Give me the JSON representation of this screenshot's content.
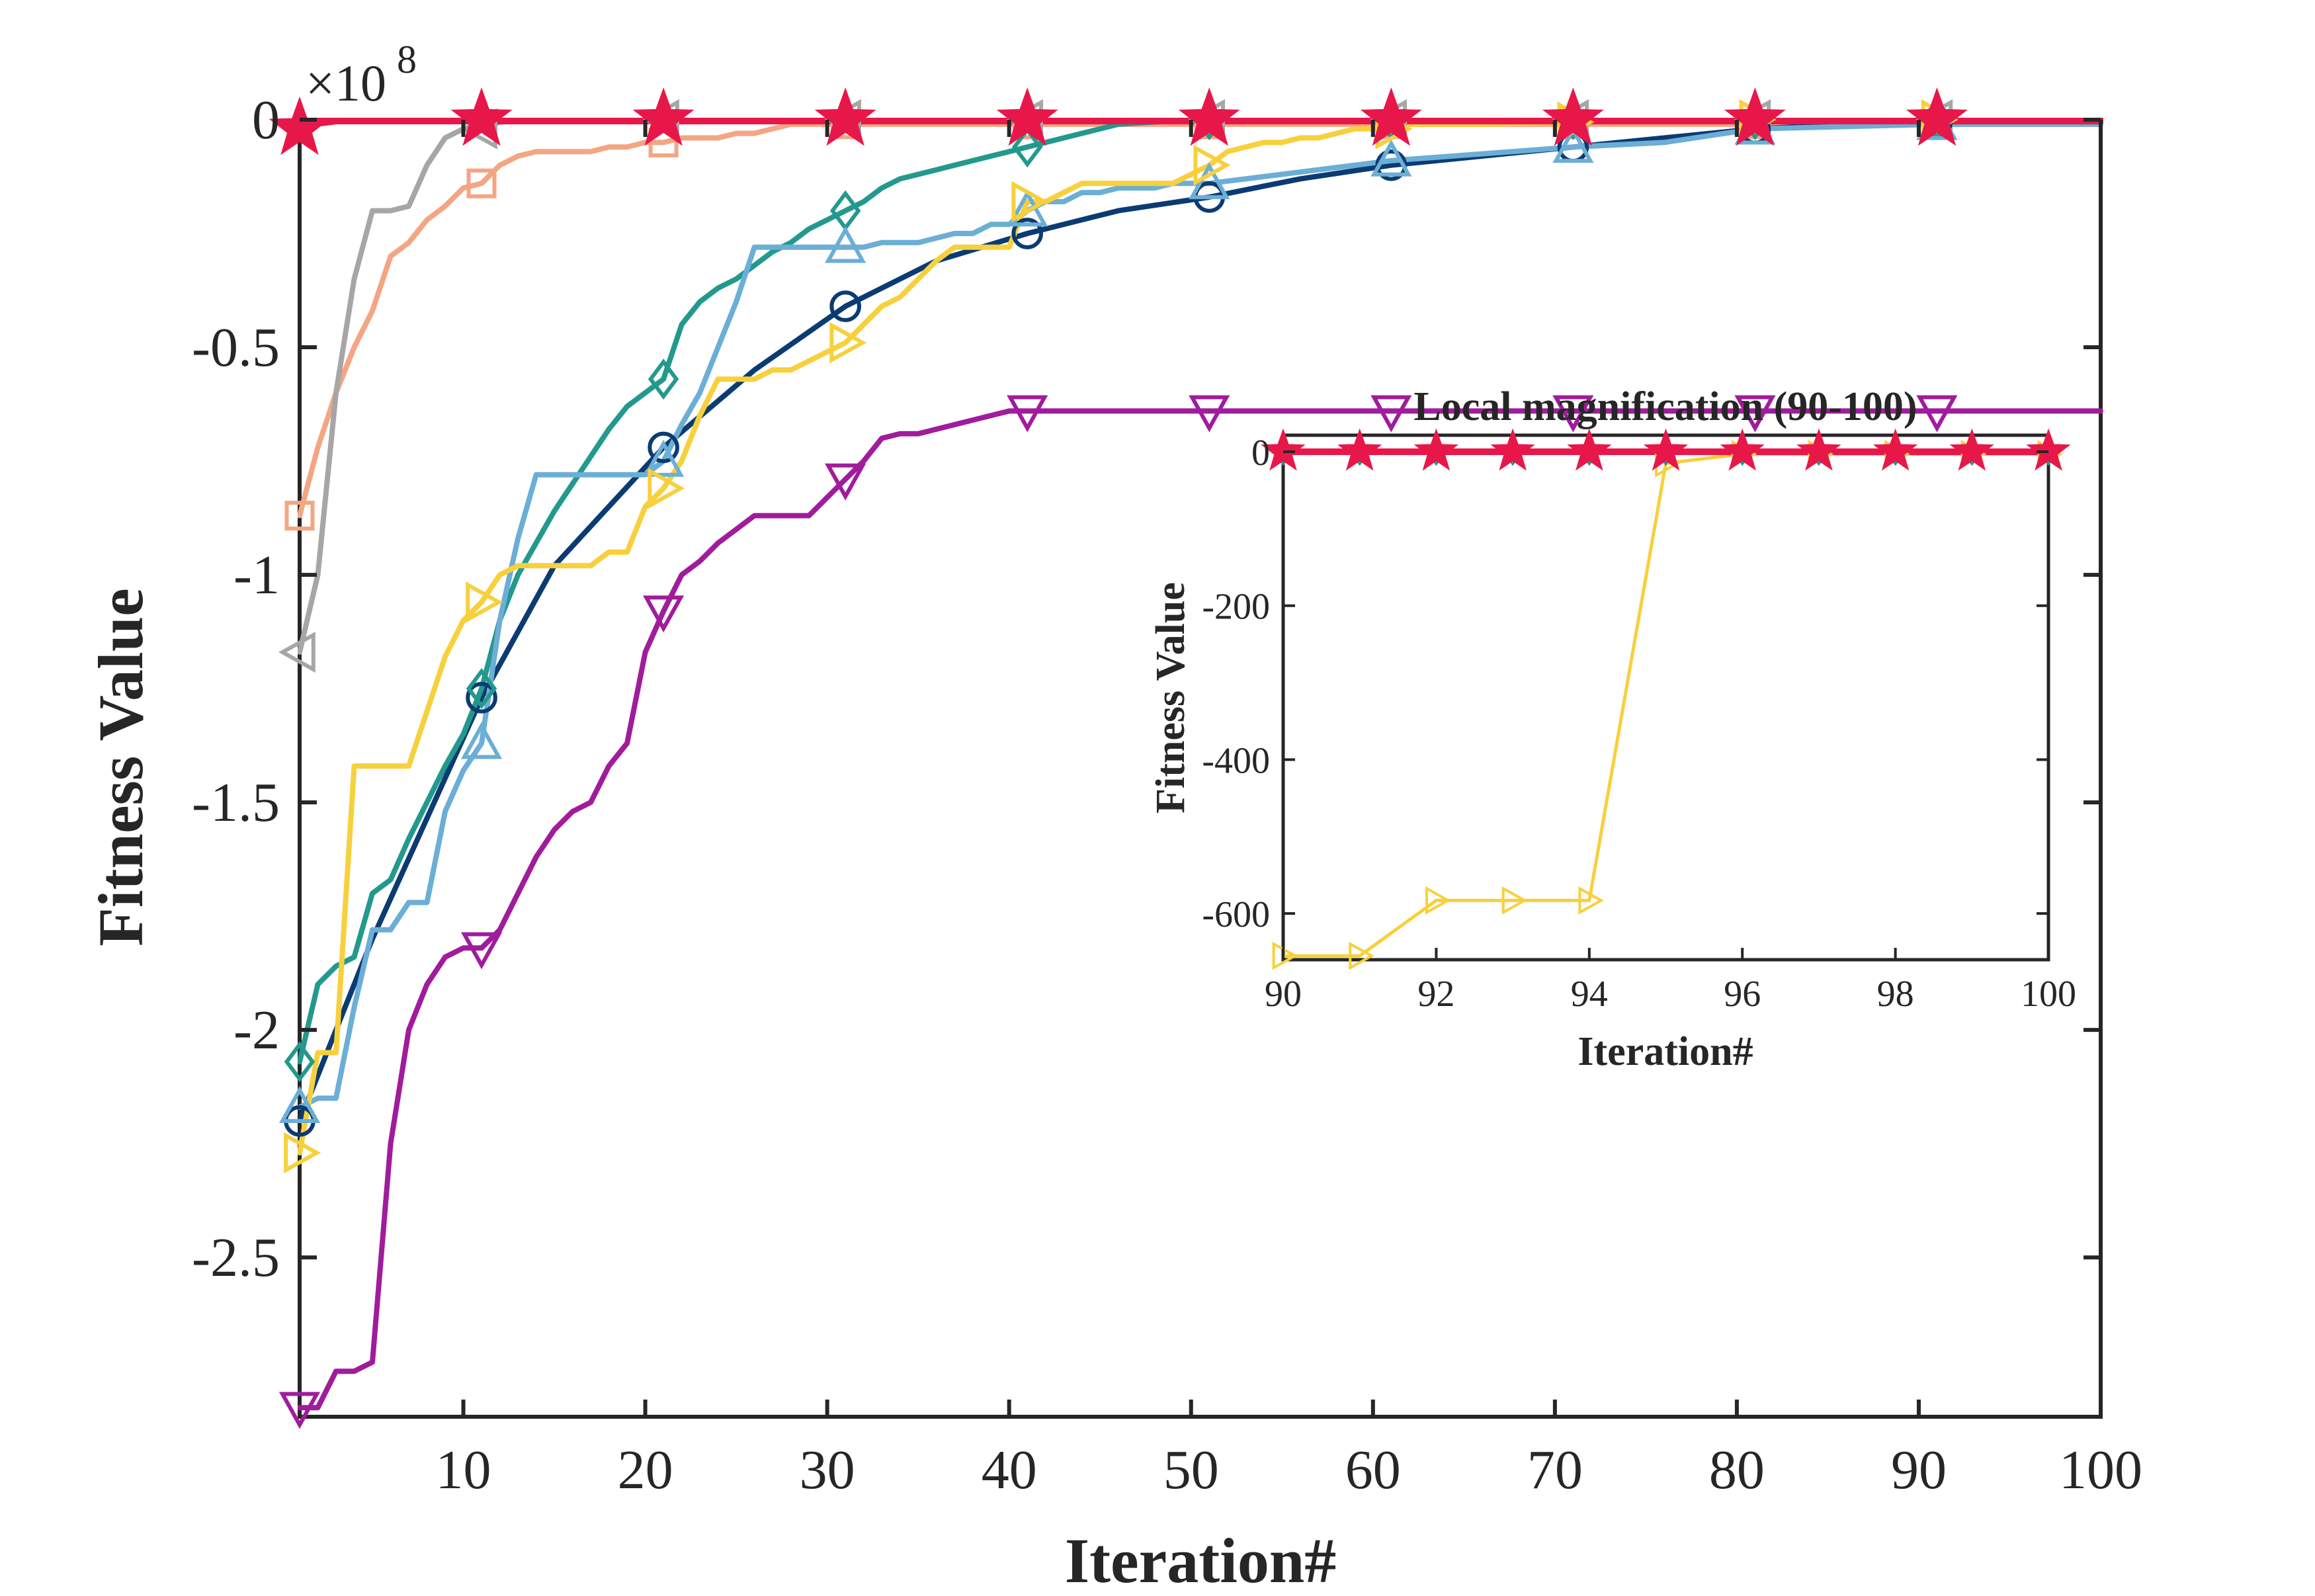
{
  "chart_data": [
    {
      "type": "line",
      "xlabel": "Iteration#",
      "ylabel": "Fitness Value",
      "y_exponent_label": "×10",
      "y_exponent_power": "8",
      "y_scale_factor": 100000000,
      "xlim": [
        1,
        100
      ],
      "ylim": [
        -2.85,
        0.0
      ],
      "xticks": [
        10,
        20,
        30,
        40,
        50,
        60,
        70,
        80,
        90,
        100
      ],
      "xtick_labels": [
        "10",
        "20",
        "30",
        "40",
        "50",
        "60",
        "70",
        "80",
        "90",
        "100"
      ],
      "yticks": [
        0,
        -0.5,
        -1,
        -1.5,
        -2,
        -2.5
      ],
      "ytick_labels": [
        "0",
        "-0.5",
        "-1",
        "-1.5",
        "-2",
        "-2.5"
      ],
      "grid": false,
      "series": [
        {
          "color": "#F4A582",
          "marker": "square",
          "x": [
            1,
            2,
            3,
            4,
            5,
            6,
            7,
            8,
            9,
            10,
            11,
            12,
            13,
            14,
            15,
            16,
            17,
            18,
            19,
            20,
            21,
            22,
            23,
            24,
            25,
            26,
            27,
            28,
            29,
            30,
            31,
            40,
            100
          ],
          "y": [
            -0.87,
            -0.72,
            -0.6,
            -0.5,
            -0.42,
            -0.3,
            -0.27,
            -0.22,
            -0.19,
            -0.15,
            -0.14,
            -0.1,
            -0.08,
            -0.07,
            -0.07,
            -0.07,
            -0.07,
            -0.06,
            -0.06,
            -0.05,
            -0.05,
            -0.04,
            -0.04,
            -0.04,
            -0.03,
            -0.03,
            -0.02,
            -0.01,
            -0.01,
            -0.01,
            -0.01,
            -0.01,
            -0.01
          ]
        },
        {
          "color": "#A6A6A6",
          "marker": "triangle-left",
          "x": [
            1,
            2,
            3,
            4,
            5,
            6,
            7,
            8,
            9,
            10,
            11,
            12,
            20,
            100
          ],
          "y": [
            -1.17,
            -1.0,
            -0.6,
            -0.35,
            -0.2,
            -0.2,
            -0.19,
            -0.1,
            -0.04,
            -0.02,
            -0.02,
            -0.005,
            0,
            0
          ]
        },
        {
          "color": "#0B3B73",
          "marker": "circle",
          "x": [
            1,
            5,
            11,
            15,
            21,
            26,
            31,
            36,
            41,
            46,
            51,
            56,
            61,
            66,
            71,
            76,
            81,
            86,
            91,
            100
          ],
          "y": [
            -2.2,
            -1.8,
            -1.27,
            -0.98,
            -0.72,
            -0.55,
            -0.41,
            -0.31,
            -0.25,
            -0.2,
            -0.17,
            -0.13,
            -0.1,
            -0.08,
            -0.06,
            -0.04,
            -0.02,
            -0.01,
            -0.005,
            0
          ]
        },
        {
          "color": "#23998E",
          "marker": "diamond",
          "x": [
            1,
            2,
            3,
            4,
            5,
            6,
            7,
            8,
            9,
            10,
            11,
            12,
            13,
            14,
            15,
            16,
            17,
            18,
            19,
            20,
            21,
            22,
            23,
            24,
            25,
            26,
            27,
            28,
            29,
            30,
            31,
            32,
            33,
            34,
            35,
            36,
            37,
            38,
            39,
            40,
            41,
            42,
            43,
            44,
            45,
            46,
            48,
            50,
            100
          ],
          "y": [
            -2.07,
            -1.9,
            -1.86,
            -1.84,
            -1.7,
            -1.67,
            -1.58,
            -1.5,
            -1.42,
            -1.35,
            -1.25,
            -1.1,
            -1.0,
            -0.93,
            -0.86,
            -0.8,
            -0.74,
            -0.68,
            -0.63,
            -0.6,
            -0.57,
            -0.45,
            -0.4,
            -0.37,
            -0.35,
            -0.32,
            -0.29,
            -0.27,
            -0.24,
            -0.22,
            -0.2,
            -0.18,
            -0.15,
            -0.13,
            -0.12,
            -0.11,
            -0.1,
            -0.09,
            -0.08,
            -0.07,
            -0.06,
            -0.05,
            -0.04,
            -0.03,
            -0.02,
            -0.01,
            -0.005,
            0,
            0
          ]
        },
        {
          "color": "#6BAED6",
          "marker": "triangle-up",
          "x": [
            1,
            2,
            3,
            4,
            5,
            6,
            7,
            8,
            9,
            10,
            11,
            12,
            13,
            14,
            15,
            16,
            17,
            18,
            19,
            20,
            21,
            22,
            23,
            24,
            25,
            26,
            27,
            28,
            29,
            30,
            31,
            32,
            33,
            34,
            35,
            36,
            37,
            38,
            39,
            40,
            41,
            42,
            43,
            44,
            45,
            46,
            47,
            48,
            49,
            50,
            51,
            61,
            71,
            76,
            81,
            91,
            100
          ],
          "y": [
            -2.17,
            -2.15,
            -2.15,
            -1.95,
            -1.78,
            -1.78,
            -1.72,
            -1.72,
            -1.52,
            -1.43,
            -1.37,
            -1.1,
            -0.92,
            -0.78,
            -0.78,
            -0.78,
            -0.78,
            -0.78,
            -0.78,
            -0.78,
            -0.75,
            -0.67,
            -0.6,
            -0.5,
            -0.4,
            -0.28,
            -0.28,
            -0.28,
            -0.28,
            -0.28,
            -0.28,
            -0.28,
            -0.27,
            -0.27,
            -0.27,
            -0.26,
            -0.25,
            -0.25,
            -0.23,
            -0.23,
            -0.2,
            -0.18,
            -0.18,
            -0.16,
            -0.16,
            -0.15,
            -0.15,
            -0.15,
            -0.14,
            -0.14,
            -0.14,
            -0.09,
            -0.06,
            -0.05,
            -0.02,
            -0.01,
            -0.01
          ]
        },
        {
          "color": "#F7D03C",
          "marker": "triangle-right",
          "x": [
            1,
            2,
            3,
            4,
            5,
            6,
            7,
            8,
            9,
            10,
            11,
            12,
            13,
            14,
            15,
            16,
            17,
            18,
            19,
            20,
            21,
            22,
            23,
            24,
            25,
            26,
            27,
            28,
            29,
            30,
            31,
            32,
            33,
            34,
            35,
            36,
            37,
            38,
            39,
            40,
            41,
            42,
            43,
            44,
            45,
            46,
            47,
            48,
            49,
            50,
            51,
            52,
            53,
            54,
            55,
            56,
            57,
            58,
            59,
            60,
            61,
            62,
            66,
            71,
            81,
            91,
            100
          ],
          "y": [
            -2.27,
            -2.05,
            -2.05,
            -1.42,
            -1.42,
            -1.42,
            -1.42,
            -1.3,
            -1.18,
            -1.1,
            -1.06,
            -1.0,
            -0.98,
            -0.98,
            -0.98,
            -0.98,
            -0.98,
            -0.95,
            -0.95,
            -0.85,
            -0.81,
            -0.75,
            -0.65,
            -0.57,
            -0.57,
            -0.57,
            -0.55,
            -0.55,
            -0.53,
            -0.51,
            -0.49,
            -0.45,
            -0.41,
            -0.39,
            -0.35,
            -0.31,
            -0.28,
            -0.28,
            -0.28,
            -0.28,
            -0.18,
            -0.18,
            -0.16,
            -0.14,
            -0.14,
            -0.14,
            -0.14,
            -0.14,
            -0.14,
            -0.12,
            -0.1,
            -0.07,
            -0.06,
            -0.05,
            -0.05,
            -0.04,
            -0.04,
            -0.03,
            -0.02,
            -0.02,
            -0.02,
            -0.01,
            -0.01,
            -0.005,
            0,
            0,
            0
          ]
        },
        {
          "color": "#A01C9C",
          "marker": "triangle-down",
          "x": [
            1,
            2,
            3,
            4,
            5,
            6,
            7,
            8,
            9,
            10,
            11,
            12,
            13,
            14,
            15,
            16,
            17,
            18,
            19,
            20,
            21,
            22,
            23,
            24,
            25,
            26,
            27,
            28,
            29,
            30,
            31,
            32,
            33,
            34,
            35,
            36,
            37,
            38,
            39,
            40,
            41,
            100
          ],
          "y": [
            -2.83,
            -2.83,
            -2.75,
            -2.75,
            -2.73,
            -2.25,
            -2.0,
            -1.9,
            -1.84,
            -1.82,
            -1.82,
            -1.78,
            -1.7,
            -1.62,
            -1.56,
            -1.52,
            -1.5,
            -1.42,
            -1.37,
            -1.17,
            -1.08,
            -1.0,
            -0.97,
            -0.93,
            -0.9,
            -0.87,
            -0.87,
            -0.87,
            -0.87,
            -0.83,
            -0.79,
            -0.75,
            -0.7,
            -0.69,
            -0.69,
            -0.68,
            -0.67,
            -0.66,
            -0.65,
            -0.64,
            -0.64,
            -0.64
          ]
        },
        {
          "color": "#E8174A",
          "marker": "star",
          "x": [
            1,
            2,
            3,
            100
          ],
          "y": [
            -0.02,
            -0.005,
            0,
            0
          ]
        }
      ],
      "markers_x": [
        1,
        11,
        21,
        31,
        41,
        51,
        61,
        71,
        81,
        91
      ]
    },
    {
      "type": "line",
      "title": "Local magnification (90-100)",
      "xlabel": "Iteration#",
      "ylabel": "Fitness Value",
      "xlim": [
        90,
        100
      ],
      "ylim": [
        -660,
        0
      ],
      "xticks": [
        90,
        92,
        94,
        96,
        98,
        100
      ],
      "xtick_labels": [
        "90",
        "92",
        "94",
        "96",
        "98",
        "100"
      ],
      "yticks": [
        0,
        -200,
        -400,
        -600
      ],
      "ytick_labels": [
        "0",
        "-200",
        "-400",
        "-600"
      ],
      "grid": false,
      "series": [
        {
          "color": "#F7D03C",
          "marker": "triangle-right",
          "x": [
            90,
            91,
            92,
            93,
            94,
            95,
            96,
            97,
            98,
            99,
            100
          ],
          "y": [
            -655,
            -655,
            -583,
            -583,
            -583,
            -15,
            -3,
            -3,
            -3,
            -3,
            -3
          ]
        },
        {
          "color": "#23998E",
          "marker": "diamond",
          "x": [
            90,
            91,
            92,
            93,
            94,
            95,
            96,
            97,
            98,
            99,
            100
          ],
          "y": [
            0,
            0,
            0,
            0,
            0,
            0,
            0,
            0,
            0,
            0,
            0
          ]
        },
        {
          "color": "#E8174A",
          "marker": "star",
          "x": [
            90,
            91,
            92,
            93,
            94,
            95,
            96,
            97,
            98,
            99,
            100
          ],
          "y": [
            0,
            0,
            0,
            0,
            0,
            0,
            0,
            0,
            0,
            0,
            0
          ]
        }
      ]
    }
  ]
}
